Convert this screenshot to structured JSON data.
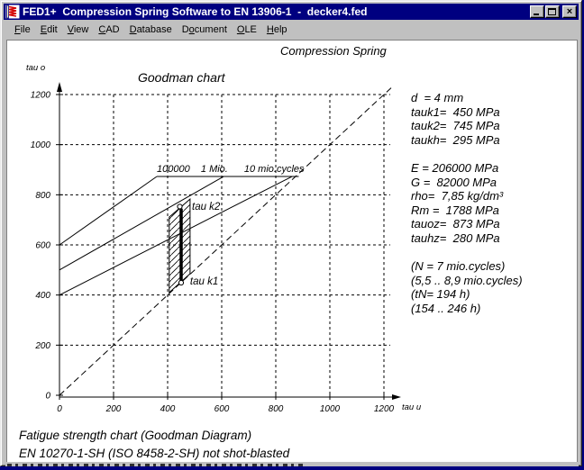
{
  "window": {
    "title": "FED1+  Compression Spring Software to EN 13906-1  -  decker4.fed",
    "controls": [
      "minimize",
      "maximize",
      "close"
    ],
    "app_icon": "spring-icon",
    "colors": {
      "titlebar": "#000080",
      "titlebar_text": "#ffffff",
      "chrome": "#c0c0c0",
      "icon_red": "#d40000",
      "ink": "#000000"
    }
  },
  "menu": {
    "items": [
      {
        "label": "File",
        "underline": 0
      },
      {
        "label": "Edit",
        "underline": 0
      },
      {
        "label": "View",
        "underline": 0
      },
      {
        "label": "CAD",
        "underline": 0
      },
      {
        "label": "Database",
        "underline": 0
      },
      {
        "label": "Document",
        "underline": 1
      },
      {
        "label": "OLE",
        "underline": 0
      },
      {
        "label": "Help",
        "underline": 0
      }
    ]
  },
  "results_panel": {
    "block1": [
      "d  = 4 mm",
      "tauk1=  450 MPa",
      "tauk2=  745 MPa",
      "taukh=  295 MPa"
    ],
    "block2": [
      "E = 206000 MPa",
      "G =  82000 MPa",
      "rho=  7,85 kg/dm³",
      "Rm =  1788 MPa",
      "tauoz=  873 MPa",
      "tauhz=  280 MPa"
    ],
    "block3": [
      "(N = 7 mio.cycles)",
      "(5,5 .. 8,9 mio.cycles)",
      "(tN= 194 h)",
      "(154 .. 246 h)"
    ]
  },
  "footer": {
    "line1": "Fatigue strength chart (Goodman Diagram)",
    "line2": "EN 10270-1-SH (ISO 8458-2-SH) not shot-blasted"
  },
  "chart_data": {
    "type": "line",
    "header": "Compression Spring",
    "title": "Goodman chart",
    "xlabel": "tau u",
    "ylabel": "tau o",
    "units": "MPa",
    "xlim": [
      0,
      1200
    ],
    "ylim": [
      0,
      1200
    ],
    "xticks": [
      0,
      200,
      400,
      600,
      800,
      1000,
      1200
    ],
    "yticks": [
      0,
      200,
      400,
      600,
      800,
      1000,
      1200
    ],
    "grid": "dashed",
    "identity_line": {
      "style": "dashed",
      "from": [
        0,
        0
      ],
      "to": [
        1230,
        1230
      ]
    },
    "fatigue_plateau": {
      "y": 873,
      "x_from": 360,
      "x_to": 885
    },
    "goodman_lines": [
      {
        "label": "100000",
        "from": [
          0,
          600
        ],
        "to": [
          360,
          873
        ]
      },
      {
        "label": "1 Mio.",
        "from": [
          0,
          500
        ],
        "to": [
          607,
          873
        ]
      },
      {
        "label": "10 mio.cycles",
        "from": [
          0,
          400
        ],
        "to": [
          860,
          873
        ]
      }
    ],
    "cycle_labels": [
      {
        "text": "100000",
        "x": 360,
        "y": 891
      },
      {
        "text": "1 Mio.",
        "x": 523,
        "y": 891
      },
      {
        "text": "10 mio.cycles",
        "x": 683,
        "y": 891
      }
    ],
    "work_region": {
      "x_left": 406,
      "x_right": 483,
      "y_left": [
        410,
        711
      ],
      "y_right": [
        485,
        783
      ],
      "hatch": "diagonal"
    },
    "stress_bar": {
      "x": 450,
      "tau_k1": 450,
      "tau_k2": 745
    },
    "markers": [
      {
        "name": "tau-k2-point",
        "x": 445,
        "y": 753
      },
      {
        "name": "tau-k1-point",
        "x": 450,
        "y": 449
      }
    ],
    "point_labels": [
      {
        "text": "tau k2",
        "x": 490,
        "y": 740
      },
      {
        "text": "tau k1",
        "x": 483,
        "y": 442
      }
    ]
  }
}
